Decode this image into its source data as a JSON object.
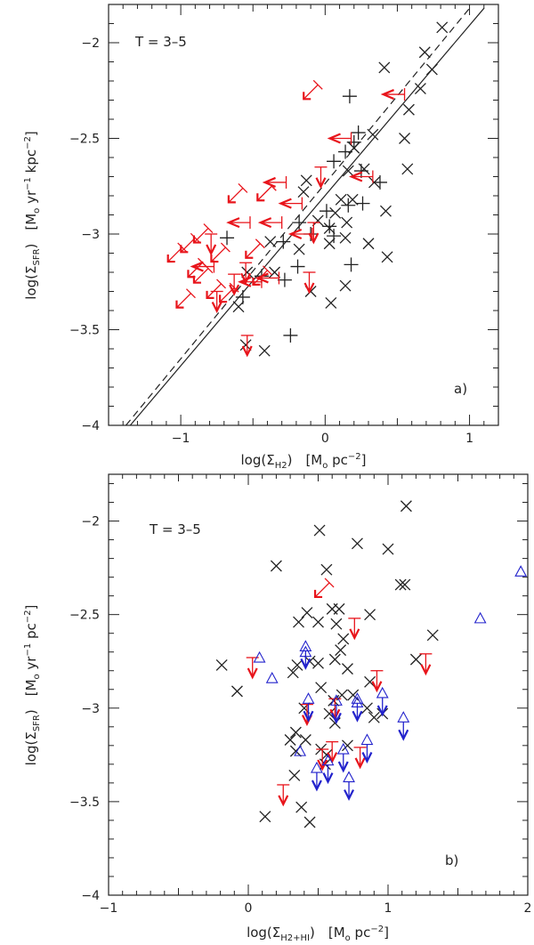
{
  "chart_data": [
    {
      "type": "scatter",
      "panel_label": "a)",
      "annotation": "T = 3–5",
      "xlabel": "log(Σ_H2)   [M⊙ pc^-2]",
      "ylabel": "log(Σ_SFR)   [M⊙ yr^-1 kpc^-2]",
      "xlabel_parts": {
        "main": "log(Σ",
        "sub": "H2",
        "close": ")",
        "units": "[M",
        "units_sub": "o",
        "units_rest": " pc",
        "units_sup": "−2",
        "units_close": "]"
      },
      "ylabel_parts": {
        "main": "log(Σ",
        "sub": "SFR",
        "close": ")",
        "units": "[M",
        "units_sub": "o",
        "units_mid": " yr",
        "units_sup1": "−1",
        "units_rest": " kpc",
        "units_sup2": "−2",
        "units_close": "]"
      },
      "xlim": [
        -1.5,
        1.2
      ],
      "ylim": [
        -4.0,
        -1.8
      ],
      "xticks": [
        {
          "v": -1,
          "label": "−1"
        },
        {
          "v": 0,
          "label": "0"
        },
        {
          "v": 1,
          "label": "1"
        }
      ],
      "yticks": [
        {
          "v": -2,
          "label": "−2"
        },
        {
          "v": -2.5,
          "label": "−2.5"
        },
        {
          "v": -3,
          "label": "−3"
        },
        {
          "v": -3.5,
          "label": "−3.5"
        },
        {
          "v": -4,
          "label": "−4"
        }
      ],
      "lines": [
        {
          "name": "fit-solid",
          "style": "solid",
          "x": [
            -1.35,
            1.1
          ],
          "y": [
            -4.0,
            -1.82
          ]
        },
        {
          "name": "fit-dashed",
          "style": "dashed",
          "x": [
            -1.38,
            1.0
          ],
          "y": [
            -4.0,
            -1.82
          ]
        }
      ],
      "series": [
        {
          "name": "detections",
          "marker": "x",
          "color": "#222222",
          "points": [
            [
              0.81,
              -1.92
            ],
            [
              0.69,
              -2.05
            ],
            [
              0.74,
              -2.14
            ],
            [
              0.41,
              -2.13
            ],
            [
              0.66,
              -2.24
            ],
            [
              0.58,
              -2.35
            ],
            [
              0.55,
              -2.5
            ],
            [
              0.57,
              -2.66
            ],
            [
              0.33,
              -2.48
            ],
            [
              0.2,
              -2.55
            ],
            [
              0.27,
              -2.66
            ],
            [
              0.34,
              -2.73
            ],
            [
              0.42,
              -2.88
            ],
            [
              0.16,
              -2.67
            ],
            [
              0.11,
              -2.82
            ],
            [
              0.19,
              -2.82
            ],
            [
              0.15,
              -2.94
            ],
            [
              0.07,
              -2.89
            ],
            [
              -0.05,
              -2.93
            ],
            [
              0.03,
              -2.97
            ],
            [
              0.03,
              -3.05
            ],
            [
              -0.15,
              -2.78
            ],
            [
              -0.18,
              -3.08
            ],
            [
              -0.13,
              -2.72
            ],
            [
              0.3,
              -3.05
            ],
            [
              0.43,
              -3.12
            ],
            [
              0.14,
              -3.27
            ],
            [
              -0.1,
              -3.3
            ],
            [
              0.04,
              -3.36
            ],
            [
              -0.38,
              -3.04
            ],
            [
              -0.35,
              -3.2
            ],
            [
              -0.54,
              -3.2
            ],
            [
              -0.55,
              -3.58
            ],
            [
              -0.42,
              -3.61
            ],
            [
              -0.6,
              -3.38
            ],
            [
              0.14,
              -3.02
            ]
          ]
        },
        {
          "name": "plus-points",
          "marker": "+",
          "color": "#222222",
          "points": [
            [
              0.17,
              -2.28
            ],
            [
              0.14,
              -2.57
            ],
            [
              0.23,
              -2.47
            ],
            [
              0.2,
              -2.52
            ],
            [
              0.06,
              -2.62
            ],
            [
              0.25,
              -2.67
            ],
            [
              0.38,
              -2.73
            ],
            [
              0.26,
              -2.84
            ],
            [
              0.16,
              -2.85
            ],
            [
              0.01,
              -2.88
            ],
            [
              -0.18,
              -2.94
            ],
            [
              0.03,
              -2.96
            ],
            [
              -0.1,
              -3.0
            ],
            [
              -0.29,
              -3.04
            ],
            [
              -0.68,
              -3.02
            ],
            [
              -0.57,
              -3.33
            ],
            [
              -0.24,
              -3.53
            ],
            [
              -0.19,
              -3.17
            ],
            [
              0.18,
              -3.16
            ],
            [
              0.06,
              -3.01
            ],
            [
              -0.28,
              -3.24
            ],
            [
              -0.44,
              -3.22
            ]
          ]
        },
        {
          "name": "upper-limits-sfr",
          "marker": "arrow-down",
          "color": "#e8141b",
          "points": [
            [
              -0.03,
              -2.65
            ],
            [
              -0.08,
              -2.94
            ],
            [
              -0.11,
              -3.2
            ],
            [
              -0.55,
              -3.15
            ],
            [
              -0.63,
              -3.21
            ],
            [
              -0.79,
              -3.0
            ],
            [
              -0.75,
              -3.3
            ],
            [
              -0.54,
              -3.53
            ]
          ]
        },
        {
          "name": "upper-limits-h2",
          "marker": "arrow-left",
          "color": "#e8141b",
          "points": [
            [
              0.55,
              -2.27
            ],
            [
              0.18,
              -2.5
            ],
            [
              0.33,
              -2.7
            ],
            [
              -0.27,
              -2.73
            ],
            [
              -0.16,
              -2.84
            ],
            [
              -0.3,
              -2.94
            ],
            [
              -0.52,
              -2.94
            ],
            [
              -0.09,
              -3.0
            ],
            [
              -0.77,
              -3.17
            ],
            [
              -0.32,
              -3.23
            ],
            [
              -0.44,
              -3.25
            ]
          ]
        },
        {
          "name": "upper-limits-both",
          "marker": "arrow-diag",
          "color": "#e8141b",
          "points": [
            [
              -0.81,
              -2.97
            ],
            [
              -0.9,
              -3.02
            ],
            [
              -0.69,
              -3.07
            ],
            [
              -0.99,
              -3.07
            ],
            [
              -0.57,
              -2.76
            ],
            [
              -0.37,
              -2.75
            ],
            [
              -0.81,
              -3.18
            ],
            [
              -0.93,
              -3.31
            ],
            [
              -0.72,
              -3.26
            ],
            [
              -0.4,
              -3.19
            ],
            [
              -0.05,
              -2.22
            ],
            [
              -0.85,
              -3.15
            ],
            [
              -0.45,
              -3.05
            ],
            [
              -0.63,
              -3.28
            ]
          ]
        }
      ]
    },
    {
      "type": "scatter",
      "panel_label": "b)",
      "annotation": "T = 3–5",
      "xlabel": "log(Σ_H2+HI)   [M⊙ pc^-2]",
      "ylabel": "log(Σ_SFR)   [M⊙ yr^-1 pc^-2]",
      "xlabel_parts": {
        "main": "log(Σ",
        "sub": "H2+HI",
        "close": ")",
        "units": "[M",
        "units_sub": "o",
        "units_rest": " pc",
        "units_sup": "−2",
        "units_close": "]"
      },
      "ylabel_parts": {
        "main": "log(Σ",
        "sub": "SFR",
        "close": ")",
        "units": "[M",
        "units_sub": "o",
        "units_mid": " yr",
        "units_sup1": "−1",
        "units_rest": " pc",
        "units_sup2": "−2",
        "units_close": "]"
      },
      "xlim": [
        -1.0,
        2.0
      ],
      "ylim": [
        -4.0,
        -1.75
      ],
      "xticks": [
        {
          "v": -1,
          "label": "−1"
        },
        {
          "v": 0,
          "label": "0"
        },
        {
          "v": 1,
          "label": "1"
        },
        {
          "v": 2,
          "label": "2"
        }
      ],
      "yticks": [
        {
          "v": -2,
          "label": "−2"
        },
        {
          "v": -2.5,
          "label": "−2.5"
        },
        {
          "v": -3,
          "label": "−3"
        },
        {
          "v": -3.5,
          "label": "−3.5"
        },
        {
          "v": -4,
          "label": "−4"
        }
      ],
      "lines": [],
      "series": [
        {
          "name": "detections",
          "marker": "x",
          "color": "#222222",
          "points": [
            [
              1.13,
              -1.92
            ],
            [
              0.51,
              -2.05
            ],
            [
              1.0,
              -2.15
            ],
            [
              0.78,
              -2.12
            ],
            [
              0.2,
              -2.24
            ],
            [
              1.09,
              -2.34
            ],
            [
              1.12,
              -2.34
            ],
            [
              0.56,
              -2.26
            ],
            [
              0.42,
              -2.49
            ],
            [
              0.6,
              -2.47
            ],
            [
              0.65,
              -2.47
            ],
            [
              0.87,
              -2.5
            ],
            [
              0.36,
              -2.54
            ],
            [
              0.5,
              -2.54
            ],
            [
              0.63,
              -2.55
            ],
            [
              0.68,
              -2.63
            ],
            [
              1.32,
              -2.61
            ],
            [
              -0.19,
              -2.77
            ],
            [
              -0.08,
              -2.91
            ],
            [
              0.32,
              -2.81
            ],
            [
              0.35,
              -2.77
            ],
            [
              0.44,
              -2.75
            ],
            [
              0.5,
              -2.76
            ],
            [
              0.62,
              -2.74
            ],
            [
              0.66,
              -2.69
            ],
            [
              0.71,
              -2.79
            ],
            [
              0.87,
              -2.86
            ],
            [
              1.2,
              -2.74
            ],
            [
              0.52,
              -2.89
            ],
            [
              0.61,
              -2.96
            ],
            [
              0.67,
              -2.93
            ],
            [
              0.75,
              -2.93
            ],
            [
              0.85,
              -3.0
            ],
            [
              0.96,
              -3.03
            ],
            [
              0.4,
              -3.0
            ],
            [
              0.58,
              -3.03
            ],
            [
              0.62,
              -3.08
            ],
            [
              0.34,
              -3.13
            ],
            [
              0.3,
              -3.17
            ],
            [
              0.34,
              -3.23
            ],
            [
              0.41,
              -3.17
            ],
            [
              0.71,
              -3.2
            ],
            [
              0.52,
              -3.22
            ],
            [
              0.56,
              -3.25
            ],
            [
              0.55,
              -3.3
            ],
            [
              0.33,
              -3.36
            ],
            [
              0.38,
              -3.53
            ],
            [
              0.12,
              -3.58
            ],
            [
              0.44,
              -3.61
            ],
            [
              0.9,
              -3.05
            ]
          ]
        },
        {
          "name": "upper-limits-red",
          "marker": "arrow-down",
          "color": "#e8141b",
          "points": [
            [
              0.03,
              -2.73
            ],
            [
              0.76,
              -2.52
            ],
            [
              1.27,
              -2.71
            ],
            [
              0.92,
              -2.8
            ],
            [
              0.42,
              -2.98
            ],
            [
              0.62,
              -2.95
            ],
            [
              0.53,
              -3.22
            ],
            [
              0.6,
              -3.18
            ],
            [
              0.8,
              -3.21
            ],
            [
              0.25,
              -3.41
            ]
          ]
        },
        {
          "name": "lower-limits-red",
          "marker": "arrow-diag",
          "color": "#e8141b",
          "points": [
            [
              0.58,
              -2.33
            ]
          ]
        },
        {
          "name": "blue-upper-limits",
          "marker": "tri-arrow",
          "color": "#2222cc",
          "points": [
            [
              0.41,
              -2.67
            ],
            [
              0.43,
              -2.95
            ],
            [
              0.63,
              -2.96
            ],
            [
              0.78,
              -2.95
            ],
            [
              0.96,
              -2.92
            ],
            [
              1.11,
              -3.05
            ],
            [
              0.85,
              -3.17
            ],
            [
              0.68,
              -3.22
            ],
            [
              0.57,
              -3.28
            ],
            [
              0.49,
              -3.32
            ],
            [
              0.72,
              -3.37
            ]
          ]
        },
        {
          "name": "blue-triangles",
          "marker": "triangle",
          "color": "#2222cc",
          "points": [
            [
              0.08,
              -2.73
            ],
            [
              0.17,
              -2.84
            ],
            [
              0.41,
              -2.7
            ],
            [
              0.37,
              -3.23
            ],
            [
              0.78,
              -2.97
            ],
            [
              1.66,
              -2.52
            ],
            [
              1.95,
              -2.27
            ]
          ]
        }
      ]
    }
  ]
}
